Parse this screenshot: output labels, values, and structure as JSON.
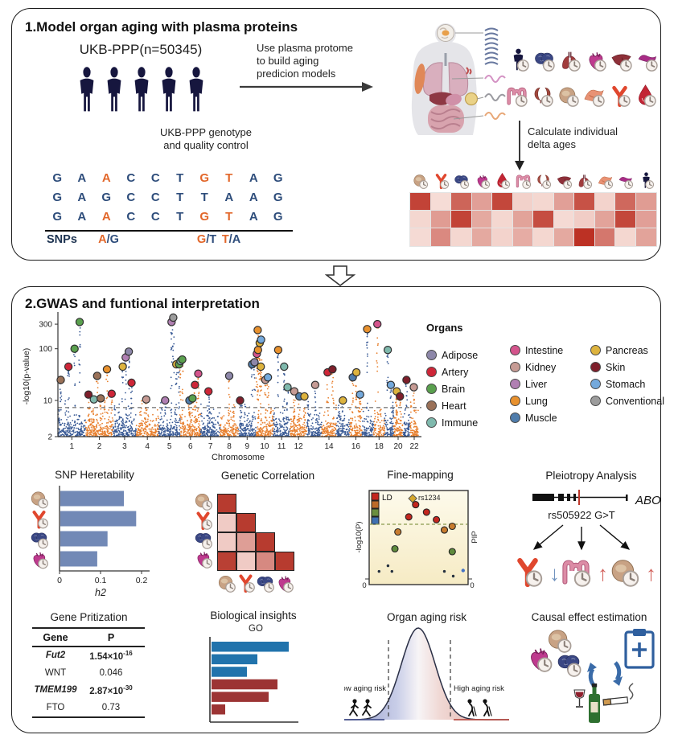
{
  "panel1": {
    "title": "1.Model organ aging with plasma proteins",
    "cohort_label": "UKB-PPP(n=50345)",
    "genotype_line1": "UKB-PPP genotype",
    "genotype_line2": "and quality control",
    "flow_line1": "Use plasma protome",
    "flow_line2": "to build aging",
    "flow_line3": "predicion models",
    "calc_line1": "Calculate individual",
    "calc_line2": "delta ages",
    "dna": {
      "colors": {
        "base": "#2E4D7B",
        "highlight": "#E2672A",
        "label": "#1C3250"
      },
      "rows": [
        {
          "seq": [
            "G",
            "A",
            "A",
            "C",
            "C",
            "T",
            "G",
            "T",
            "A",
            "G"
          ],
          "hl": [
            2,
            6,
            7
          ]
        },
        {
          "seq": [
            "G",
            "A",
            "G",
            "C",
            "C",
            "T",
            "T",
            "A",
            "A",
            "G"
          ],
          "hl": []
        },
        {
          "seq": [
            "G",
            "A",
            "A",
            "C",
            "C",
            "T",
            "G",
            "T",
            "A",
            "G"
          ],
          "hl": [
            2,
            6,
            7
          ]
        }
      ],
      "snps_label": "SNPs",
      "snps": [
        {
          "text": "A/G",
          "col": 2
        },
        {
          "text": "G/T",
          "col": 6
        },
        {
          "text": "T/A",
          "col": 7
        }
      ]
    },
    "organ_rows": [
      [
        "person",
        "brain",
        "lung",
        "heart",
        "liver",
        "pancreas"
      ],
      [
        "intestine",
        "kidney",
        "stomach",
        "muscle",
        "artery",
        "blood"
      ]
    ],
    "delta_heatmap": {
      "organs": [
        "stomach",
        "artery",
        "brain",
        "heart",
        "blood",
        "intestine",
        "kidney",
        "liver",
        "lung",
        "muscle",
        "pancreas",
        "person"
      ],
      "matrix": [
        [
          0.9,
          0.07,
          0.72,
          0.4,
          0.88,
          0.13,
          0.1,
          0.4,
          0.82,
          0.12,
          0.7,
          0.42
        ],
        [
          0.1,
          0.42,
          0.9,
          0.35,
          0.1,
          0.38,
          0.85,
          0.08,
          0.15,
          0.38,
          0.88,
          0.4
        ],
        [
          0.08,
          0.52,
          0.1,
          0.35,
          0.12,
          0.33,
          0.1,
          0.35,
          1.0,
          0.62,
          0.1,
          0.38
        ]
      ],
      "color_scale": {
        "low": "#FAE9E3",
        "high": "#BC3124"
      }
    }
  },
  "panel2": {
    "title": "2.GWAS and funtional interpretation",
    "legend": {
      "title": "Organs",
      "columns": [
        [
          {
            "label": "Adipose",
            "color": "#8D87A9"
          },
          {
            "label": "Artery",
            "color": "#CE2638"
          },
          {
            "label": "Brain",
            "color": "#5AA04E"
          },
          {
            "label": "Heart",
            "color": "#9A7158"
          },
          {
            "label": "Immune",
            "color": "#7FB9AD"
          }
        ],
        [
          {
            "label": "Intestine",
            "color": "#D4548C"
          },
          {
            "label": "Kidney",
            "color": "#C69B94"
          },
          {
            "label": "Liver",
            "color": "#B07FB2"
          },
          {
            "label": "Lung",
            "color": "#E8912E"
          },
          {
            "label": "Muscle",
            "color": "#4F7CAB"
          }
        ],
        [
          {
            "label": "Pancreas",
            "color": "#DDB33E"
          },
          {
            "label": "Skin",
            "color": "#7E1F2B"
          },
          {
            "label": "Stomach",
            "color": "#74A9DC"
          },
          {
            "label": "Conventional",
            "color": "#9C9C9C"
          }
        ]
      ]
    },
    "pleiotropy": {
      "title": "Pleiotropy Analysis",
      "gene_label": "ABO",
      "variant_label": "rs505922 G>T",
      "arrow_colors": {
        "up": "#D2625C",
        "down": "#7193BE"
      },
      "effects": [
        {
          "organ": "artery",
          "direction": "down"
        },
        {
          "organ": "intestine",
          "direction": "up"
        },
        {
          "organ": "stomach",
          "direction": "up"
        }
      ]
    },
    "gene_table": {
      "title": "Gene Pritization",
      "headers": [
        "Gene",
        "P"
      ],
      "rows": [
        {
          "gene": "Fut2",
          "italic": true,
          "p_base": "1.54×10",
          "p_sup": "-16",
          "strong": true
        },
        {
          "gene": "WNT",
          "italic": false,
          "p_base": "0.046",
          "p_sup": "",
          "strong": false
        },
        {
          "gene": "TMEM199",
          "italic": true,
          "p_base": "2.87×10",
          "p_sup": "-30",
          "strong": true
        },
        {
          "gene": "FTO",
          "italic": false,
          "p_base": "0.73",
          "p_sup": "",
          "strong": false
        }
      ]
    },
    "causal": {
      "title": "Causal effect estimation"
    }
  },
  "organ_icon_colors": {
    "person": "#16163E",
    "brain": "#3A4784",
    "lung": "#A03C3C",
    "heart": "#BE3A8E",
    "liver": "#8E3039",
    "pancreas": "#A82C86",
    "intestine": "#DC8CA6",
    "kidney": "#A2493E",
    "stomach": "#C8A284",
    "muscle": "#E89274",
    "artery": "#E0472E",
    "blood": "#C22534"
  },
  "chart_data": [
    {
      "id": "manhattan",
      "type": "scatter",
      "ylabel": "-log10(p-value)",
      "xlabel": "Chromosome",
      "yticks": [
        2,
        10,
        100,
        300
      ],
      "x_tick_labels": [
        1,
        2,
        3,
        4,
        5,
        6,
        7,
        8,
        9,
        10,
        11,
        12,
        14,
        16,
        18,
        20,
        22
      ],
      "threshold": 7.3,
      "colors": {
        "blue": "#3A5B96",
        "orange": "#E8802F",
        "threshold_line": "#7F7F7F"
      },
      "chrom_weights": [
        82.6,
        81.0,
        68.8,
        66.8,
        64.0,
        61.1,
        57.7,
        53.9,
        52.4,
        50.9,
        50.6,
        50.0,
        44.5,
        42.0,
        40.4,
        36.5,
        34.2,
        33.2,
        26.1,
        27.8,
        22.2,
        23.7
      ],
      "highlights": [
        {
          "c": 1,
          "f": 0.1,
          "v": 25,
          "o": "Heart"
        },
        {
          "c": 1,
          "f": 0.38,
          "v": 45,
          "o": "Artery"
        },
        {
          "c": 1,
          "f": 0.6,
          "v": 100,
          "o": "Brain"
        },
        {
          "c": 1,
          "f": 0.78,
          "v": 330,
          "o": "Brain"
        },
        {
          "c": 2,
          "f": 0.1,
          "v": 13,
          "o": "Skin"
        },
        {
          "c": 2,
          "f": 0.3,
          "v": 10.5,
          "o": "Immune"
        },
        {
          "c": 2,
          "f": 0.42,
          "v": 30,
          "o": "Heart"
        },
        {
          "c": 2,
          "f": 0.55,
          "v": 11,
          "o": "Heart"
        },
        {
          "c": 2,
          "f": 0.78,
          "v": 40,
          "o": "Lung"
        },
        {
          "c": 2,
          "f": 0.95,
          "v": 13.5,
          "o": "Artery"
        },
        {
          "c": 3,
          "f": 0.42,
          "v": 45,
          "o": "Pancreas"
        },
        {
          "c": 3,
          "f": 0.55,
          "v": 68,
          "o": "Liver"
        },
        {
          "c": 3,
          "f": 0.68,
          "v": 88,
          "o": "Adipose"
        },
        {
          "c": 3,
          "f": 0.8,
          "v": 22,
          "o": "Artery"
        },
        {
          "c": 4,
          "f": 0.45,
          "v": 10.5,
          "o": "Kidney"
        },
        {
          "c": 5,
          "f": 0.3,
          "v": 10,
          "o": "Liver"
        },
        {
          "c": 5,
          "f": 0.6,
          "v": 330,
          "o": "Liver"
        },
        {
          "c": 5,
          "f": 0.68,
          "v": 400,
          "o": "Conventional"
        },
        {
          "c": 5,
          "f": 0.82,
          "v": 50,
          "o": "Pancreas"
        },
        {
          "c": 5,
          "f": 0.95,
          "v": 50,
          "o": "Brain"
        },
        {
          "c": 6,
          "f": 0.02,
          "v": 58,
          "o": "Immune"
        },
        {
          "c": 6,
          "f": 0.1,
          "v": 62,
          "o": "Brain"
        },
        {
          "c": 6,
          "f": 0.45,
          "v": 10,
          "o": "Muscle"
        },
        {
          "c": 6,
          "f": 0.6,
          "v": 11,
          "o": "Brain"
        },
        {
          "c": 6,
          "f": 0.72,
          "v": 20,
          "o": "Artery"
        },
        {
          "c": 6,
          "f": 0.88,
          "v": 33,
          "o": "Intestine"
        },
        {
          "c": 7,
          "f": 0.4,
          "v": 15,
          "o": "Artery"
        },
        {
          "c": 8,
          "f": 0.5,
          "v": 30,
          "o": "Adipose"
        },
        {
          "c": 9,
          "f": 0.1,
          "v": 10,
          "o": "Skin"
        },
        {
          "c": 9,
          "f": 0.78,
          "v": 50,
          "o": "Muscle"
        },
        {
          "c": 9,
          "f": 0.92,
          "v": 55,
          "o": "Adipose"
        },
        {
          "c": 10,
          "f": 0.05,
          "v": 80,
          "o": "Intestine"
        },
        {
          "c": 10,
          "f": 0.1,
          "v": 230,
          "o": "Lung"
        },
        {
          "c": 10,
          "f": 0.12,
          "v": 95,
          "o": "Lung"
        },
        {
          "c": 10,
          "f": 0.22,
          "v": 130,
          "o": "Pancreas"
        },
        {
          "c": 10,
          "f": 0.28,
          "v": 45,
          "o": "Pancreas"
        },
        {
          "c": 10,
          "f": 0.3,
          "v": 150,
          "o": "Stomach"
        },
        {
          "c": 10,
          "f": 0.55,
          "v": 25,
          "o": "Kidney"
        },
        {
          "c": 10,
          "f": 0.7,
          "v": 28,
          "o": "Stomach"
        },
        {
          "c": 11,
          "f": 0.3,
          "v": 95,
          "o": "Lung"
        },
        {
          "c": 11,
          "f": 0.65,
          "v": 45,
          "o": "Immune"
        },
        {
          "c": 11,
          "f": 0.85,
          "v": 18,
          "o": "Immune"
        },
        {
          "c": 12,
          "f": 0.25,
          "v": 15,
          "o": "Kidney"
        },
        {
          "c": 12,
          "f": 0.55,
          "v": 12,
          "o": "Muscle"
        },
        {
          "c": 12,
          "f": 0.85,
          "v": 12,
          "o": "Pancreas"
        },
        {
          "c": 13,
          "f": 0.55,
          "v": 20,
          "o": "Kidney"
        },
        {
          "c": 14,
          "f": 0.4,
          "v": 35,
          "o": "Artery"
        },
        {
          "c": 14,
          "f": 0.75,
          "v": 40,
          "o": "Skin"
        },
        {
          "c": 15,
          "f": 0.5,
          "v": 10,
          "o": "Pancreas"
        },
        {
          "c": 16,
          "f": 0.25,
          "v": 28,
          "o": "Muscle"
        },
        {
          "c": 16,
          "f": 0.55,
          "v": 35,
          "o": "Pancreas"
        },
        {
          "c": 16,
          "f": 0.85,
          "v": 13,
          "o": "Stomach"
        },
        {
          "c": 17,
          "f": 0.45,
          "v": 240,
          "o": "Lung"
        },
        {
          "c": 18,
          "f": 0.35,
          "v": 300,
          "o": "Intestine"
        },
        {
          "c": 19,
          "f": 0.35,
          "v": 95,
          "o": "Immune"
        },
        {
          "c": 19,
          "f": 0.7,
          "v": 20,
          "o": "Stomach"
        },
        {
          "c": 20,
          "f": 0.35,
          "v": 15,
          "o": "Pancreas"
        },
        {
          "c": 20,
          "f": 0.7,
          "v": 12,
          "o": "Skin"
        },
        {
          "c": 21,
          "f": 0.5,
          "v": 25,
          "o": "Skin"
        },
        {
          "c": 22,
          "f": 0.45,
          "v": 18,
          "o": "Kidney"
        }
      ]
    },
    {
      "id": "snp_heritability",
      "type": "bar",
      "title": "SNP Heretability",
      "xlabel": "h2",
      "xticks": [
        0,
        0.1,
        0.2
      ],
      "xlim": [
        0,
        0.2
      ],
      "categories": [
        "stomach",
        "artery",
        "brain",
        "heart"
      ],
      "values": [
        0.155,
        0.185,
        0.115,
        0.09
      ],
      "bar_color": "#7289B6"
    },
    {
      "id": "genetic_correlation",
      "type": "heatmap",
      "title": "Genetic Correlation",
      "organs": [
        "stomach",
        "artery",
        "brain",
        "heart"
      ],
      "matrix": [
        [
          0.95
        ],
        [
          0.12,
          0.95
        ],
        [
          0.12,
          0.38,
          0.95
        ],
        [
          0.92,
          0.12,
          0.5,
          0.95
        ]
      ],
      "color_scale": {
        "low": "#F8E0DB",
        "high": "#B43226"
      }
    },
    {
      "id": "fine_mapping",
      "type": "scatter",
      "title": "Fine-mapping",
      "ylabel_left": "-log10(P)",
      "ylabel_right": "PIP",
      "origin_label": "0",
      "ld_legend": {
        "label": "LD",
        "colors": [
          "#C3261E",
          "#BC6A28",
          "#6B8E3E",
          "#3F6FB0"
        ]
      },
      "lead_snp": {
        "label": "rs1234",
        "color": "#D4A72C",
        "x": 0.44,
        "y": 0.085
      },
      "threshold_line_y": 0.36,
      "points": [
        {
          "x": 0.47,
          "y": 0.15,
          "c": "#C3261E",
          "r": 4
        },
        {
          "x": 0.58,
          "y": 0.23,
          "c": "#C3261E",
          "r": 4
        },
        {
          "x": 0.4,
          "y": 0.28,
          "c": "#C3261E",
          "r": 4
        },
        {
          "x": 0.68,
          "y": 0.31,
          "c": "#C3261E",
          "r": 4
        },
        {
          "x": 0.29,
          "y": 0.44,
          "c": "#C77B2F",
          "r": 4
        },
        {
          "x": 0.76,
          "y": 0.42,
          "c": "#C77B2F",
          "r": 4
        },
        {
          "x": 0.84,
          "y": 0.38,
          "c": "#C77B2F",
          "r": 4
        },
        {
          "x": 0.26,
          "y": 0.62,
          "c": "#5E8A3C",
          "r": 4
        },
        {
          "x": 0.84,
          "y": 0.65,
          "c": "#5E8A3C",
          "r": 4
        },
        {
          "x": 0.1,
          "y": 0.86,
          "c": "#25303E",
          "r": 1.7
        },
        {
          "x": 0.19,
          "y": 0.8,
          "c": "#25303E",
          "r": 1.7
        },
        {
          "x": 0.23,
          "y": 0.86,
          "c": "#25303E",
          "r": 1.7
        },
        {
          "x": 0.76,
          "y": 0.86,
          "c": "#25303E",
          "r": 1.7
        },
        {
          "x": 0.85,
          "y": 0.91,
          "c": "#25303E",
          "r": 1.7
        },
        {
          "x": 0.95,
          "y": 0.85,
          "c": "#4472C4",
          "r": 2.2
        }
      ]
    },
    {
      "id": "go_enrichment",
      "type": "bar",
      "title": "Biological insights",
      "subtitle": "GO",
      "values": [
        0.96,
        0.57,
        0.44,
        0.82,
        0.71,
        0.17
      ],
      "colors": [
        "#2173AC",
        "#2173AC",
        "#2173AC",
        "#9C3434",
        "#9C3434",
        "#9C3434"
      ]
    },
    {
      "id": "organ_aging_risk",
      "type": "area",
      "title": "Organ aging risk",
      "left_label": "Low aging risk",
      "right_label": "High aging risk",
      "gradient": [
        "#8F97C8",
        "#F7F4F6",
        "#DEA49C"
      ]
    }
  ]
}
